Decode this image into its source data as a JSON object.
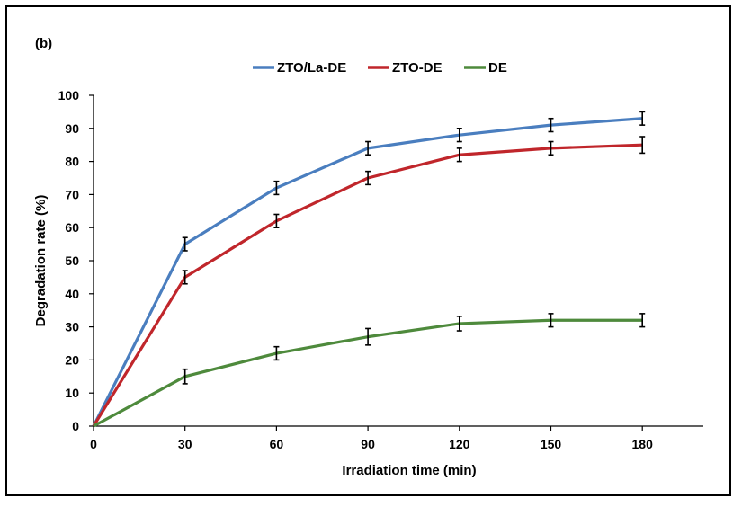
{
  "panel_label": "(b)",
  "chart_data": {
    "type": "line",
    "title": "",
    "xlabel": "Irradiation time (min)",
    "ylabel": "Degradation rate (%)",
    "x": [
      0,
      30,
      60,
      90,
      120,
      150,
      180
    ],
    "x_tick_labels": [
      "0",
      "30",
      "60",
      "90",
      "120",
      "150",
      "180"
    ],
    "y_tick_labels": [
      "0",
      "10",
      "20",
      "30",
      "40",
      "50",
      "60",
      "70",
      "80",
      "90",
      "100"
    ],
    "xlim": [
      0,
      200
    ],
    "ylim": [
      0,
      100
    ],
    "grid": false,
    "legend_position": "top-center",
    "series": [
      {
        "name": "ZTO/La-DE",
        "color": "#4a7ebf",
        "values": [
          0,
          55,
          72,
          84,
          88,
          91,
          93
        ],
        "errors": [
          0,
          2,
          2,
          2,
          2,
          2,
          2
        ]
      },
      {
        "name": "ZTO-DE",
        "color": "#c0262b",
        "values": [
          0,
          45,
          62,
          75,
          82,
          84,
          85
        ],
        "errors": [
          0,
          2,
          2,
          2,
          2,
          2,
          2.5
        ]
      },
      {
        "name": "DE",
        "color": "#4e8a3c",
        "values": [
          0,
          15,
          22,
          27,
          31,
          32,
          32
        ],
        "errors": [
          0,
          2.2,
          2,
          2.5,
          2.2,
          2,
          2
        ]
      }
    ]
  }
}
